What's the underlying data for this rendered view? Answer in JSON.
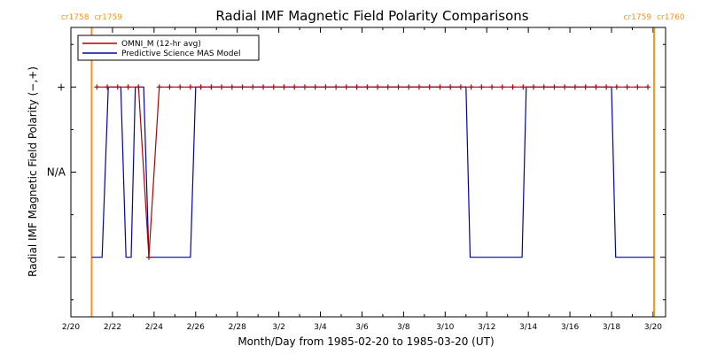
{
  "chart_data": {
    "type": "line",
    "title": "Radial IMF Magnetic Field Polarity Comparisons",
    "xlabel": "Month/Day from 1985-02-20 to 1985-03-20 (UT)",
    "ylabel": "Radial IMF Magnetic Field Polarity (−,+)",
    "xlim": [
      0,
      28.6
    ],
    "ylim": [
      -1.7,
      1.7
    ],
    "x_ticks": [
      {
        "label": "2/20",
        "value": 0
      },
      {
        "label": "2/22",
        "value": 2
      },
      {
        "label": "2/24",
        "value": 4
      },
      {
        "label": "2/26",
        "value": 6
      },
      {
        "label": "2/28",
        "value": 8
      },
      {
        "label": "3/2",
        "value": 10
      },
      {
        "label": "3/4",
        "value": 12
      },
      {
        "label": "3/6",
        "value": 14
      },
      {
        "label": "3/8",
        "value": 16
      },
      {
        "label": "3/10",
        "value": 18
      },
      {
        "label": "3/12",
        "value": 20
      },
      {
        "label": "3/14",
        "value": 22
      },
      {
        "label": "3/16",
        "value": 24
      },
      {
        "label": "3/18",
        "value": 26
      },
      {
        "label": "3/20",
        "value": 28
      }
    ],
    "y_levels": [
      {
        "label": "+",
        "value": 1
      },
      {
        "label": "N/A",
        "value": 0
      },
      {
        "label": "−",
        "value": -1
      }
    ],
    "carrington_markers": [
      {
        "x": 1.0,
        "left_label": "cr1758",
        "right_label": "cr1759"
      },
      {
        "x": 28.05,
        "left_label": "cr1759",
        "right_label": "cr1760"
      }
    ],
    "legend_position": "top-left",
    "series": [
      {
        "name": "OMNI_M (12-hr avg)",
        "color": "#b00000",
        "marker": "+",
        "x": [
          1.25,
          1.75,
          2.25,
          2.75,
          3.25,
          3.75,
          4.25,
          4.75,
          5.25,
          5.75,
          6.25,
          6.75,
          7.25,
          7.75,
          8.25,
          8.75,
          9.25,
          9.75,
          10.25,
          10.75,
          11.25,
          11.75,
          12.25,
          12.75,
          13.25,
          13.75,
          14.25,
          14.75,
          15.25,
          15.75,
          16.25,
          16.75,
          17.25,
          17.75,
          18.25,
          18.75,
          19.25,
          19.75,
          20.25,
          20.75,
          21.25,
          21.75,
          22.25,
          22.75,
          23.25,
          23.75,
          24.25,
          24.75,
          25.25,
          25.75,
          26.25,
          26.75,
          27.25,
          27.75
        ],
        "y": [
          1,
          1,
          1,
          1,
          1,
          -1,
          1,
          1,
          1,
          1,
          1,
          1,
          1,
          1,
          1,
          1,
          1,
          1,
          1,
          1,
          1,
          1,
          1,
          1,
          1,
          1,
          1,
          1,
          1,
          1,
          1,
          1,
          1,
          1,
          1,
          1,
          1,
          1,
          1,
          1,
          1,
          1,
          1,
          1,
          1,
          1,
          1,
          1,
          1,
          1,
          1,
          1,
          1,
          1
        ]
      },
      {
        "name": "Predictive Science MAS Model",
        "color": "#0000b4",
        "marker": "",
        "x": [
          1.0,
          1.5,
          1.8,
          2.4,
          2.65,
          2.9,
          3.1,
          3.5,
          3.75,
          3.95,
          5.75,
          6.0,
          19.0,
          19.2,
          21.7,
          21.9,
          26.0,
          26.2,
          28.05
        ],
        "y": [
          -1,
          -1,
          1,
          1,
          -1,
          -1,
          1,
          1,
          -1,
          -1,
          -1,
          1,
          1,
          -1,
          -1,
          1,
          1,
          -1,
          -1
        ]
      }
    ]
  }
}
